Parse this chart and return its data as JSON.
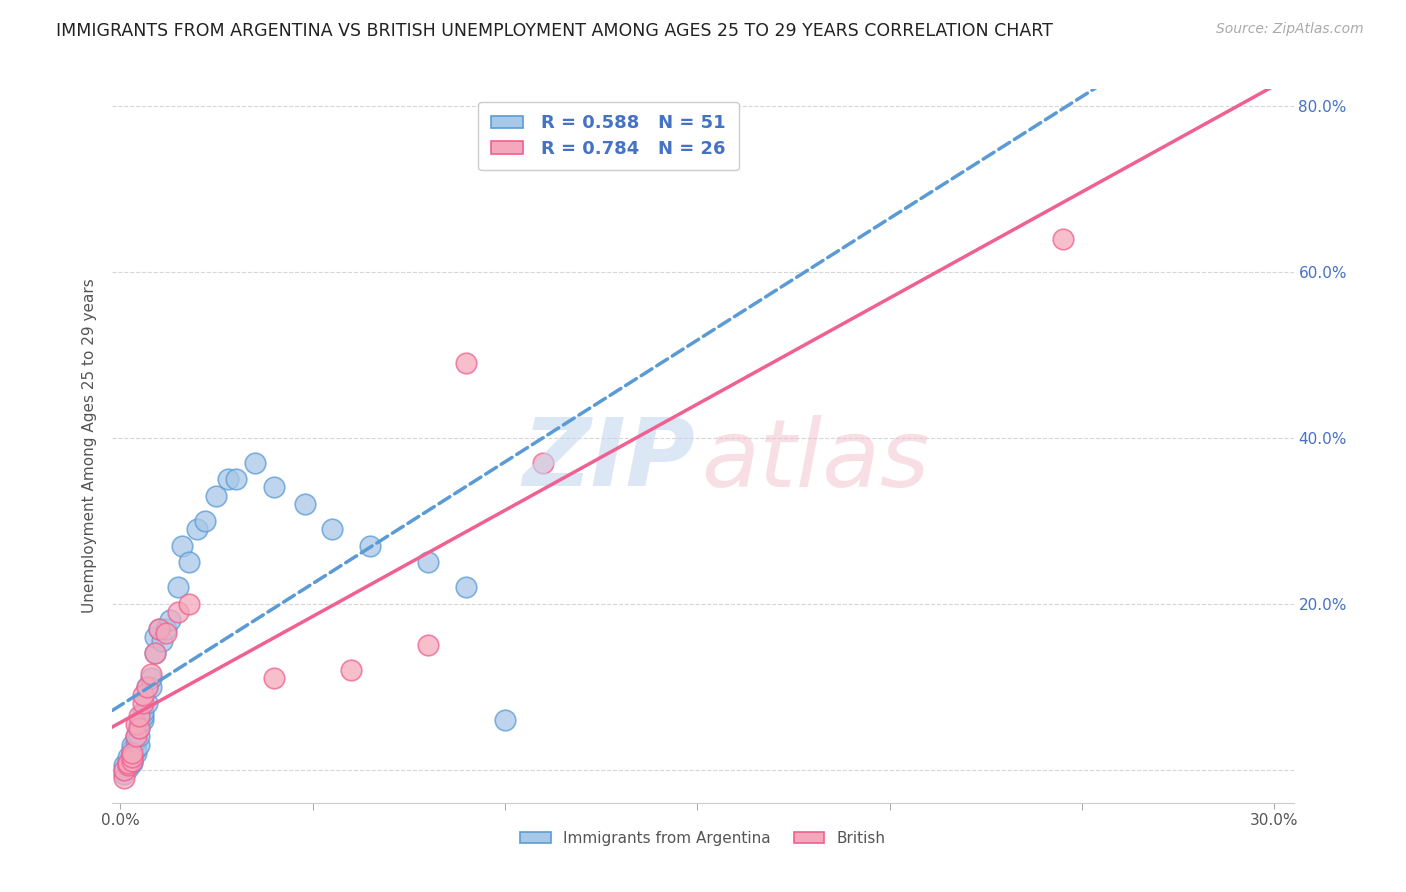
{
  "title": "IMMIGRANTS FROM ARGENTINA VS BRITISH UNEMPLOYMENT AMONG AGES 25 TO 29 YEARS CORRELATION CHART",
  "source": "Source: ZipAtlas.com",
  "ylabel": "Unemployment Among Ages 25 to 29 years",
  "xlim": [
    -0.002,
    0.305
  ],
  "ylim": [
    -0.04,
    0.82
  ],
  "xtick_positions": [
    0.0,
    0.3
  ],
  "xtick_labels": [
    "0.0%",
    "30.0%"
  ],
  "ytick_positions": [
    0.0,
    0.2,
    0.4,
    0.6,
    0.8
  ],
  "ytick_labels": [
    "",
    "20.0%",
    "40.0%",
    "60.0%",
    "80.0%"
  ],
  "grid_yticks": [
    0.0,
    0.2,
    0.4,
    0.6,
    0.8
  ],
  "color_argentina": "#a8c8e8",
  "color_british": "#f5a8bc",
  "color_argentina_edge": "#5b9bd5",
  "color_british_edge": "#f06090",
  "color_text_blue": "#4472C4",
  "background_color": "#ffffff",
  "grid_color": "#cccccc",
  "argentina_x": [
    0.001,
    0.001,
    0.001,
    0.002,
    0.002,
    0.002,
    0.002,
    0.002,
    0.003,
    0.003,
    0.003,
    0.003,
    0.003,
    0.003,
    0.004,
    0.004,
    0.004,
    0.004,
    0.005,
    0.005,
    0.005,
    0.005,
    0.006,
    0.006,
    0.006,
    0.007,
    0.007,
    0.008,
    0.008,
    0.009,
    0.009,
    0.01,
    0.011,
    0.012,
    0.013,
    0.015,
    0.016,
    0.018,
    0.02,
    0.022,
    0.025,
    0.028,
    0.03,
    0.035,
    0.04,
    0.048,
    0.055,
    0.065,
    0.08,
    0.09,
    0.1
  ],
  "argentina_y": [
    -0.005,
    0.0,
    0.005,
    0.002,
    0.005,
    0.008,
    0.01,
    0.015,
    0.008,
    0.01,
    0.015,
    0.02,
    0.025,
    0.03,
    0.02,
    0.025,
    0.035,
    0.04,
    0.03,
    0.04,
    0.05,
    0.055,
    0.06,
    0.065,
    0.07,
    0.08,
    0.1,
    0.1,
    0.11,
    0.14,
    0.16,
    0.17,
    0.155,
    0.17,
    0.18,
    0.22,
    0.27,
    0.25,
    0.29,
    0.3,
    0.33,
    0.35,
    0.35,
    0.37,
    0.34,
    0.32,
    0.29,
    0.27,
    0.25,
    0.22,
    0.06
  ],
  "british_x": [
    0.001,
    0.001,
    0.002,
    0.002,
    0.003,
    0.003,
    0.003,
    0.004,
    0.004,
    0.005,
    0.005,
    0.006,
    0.006,
    0.007,
    0.008,
    0.009,
    0.01,
    0.012,
    0.015,
    0.018,
    0.04,
    0.06,
    0.08,
    0.09,
    0.11,
    0.245
  ],
  "british_y": [
    -0.01,
    0.0,
    0.005,
    0.008,
    0.01,
    0.015,
    0.02,
    0.04,
    0.055,
    0.05,
    0.065,
    0.08,
    0.09,
    0.1,
    0.115,
    0.14,
    0.17,
    0.165,
    0.19,
    0.2,
    0.11,
    0.12,
    0.15,
    0.49,
    0.37,
    0.64
  ],
  "legend_line1": "R = 0.588   N = 51",
  "legend_line2": "R = 0.784   N = 26"
}
